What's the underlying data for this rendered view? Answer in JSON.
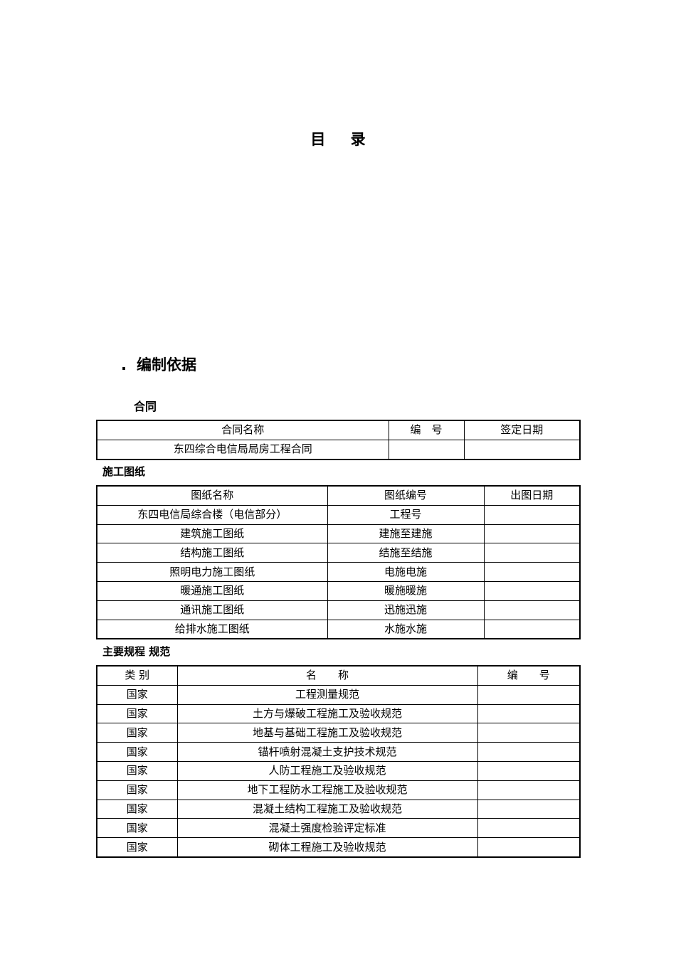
{
  "title": "目 录",
  "section": {
    "number": ".",
    "heading": "编制依据"
  },
  "contract": {
    "heading": "合同",
    "columns": [
      "合同名称",
      "编　号",
      "签定日期"
    ],
    "rows": [
      [
        "东四综合电信局局房工程合同",
        "",
        ""
      ]
    ]
  },
  "drawings": {
    "heading": "施工图纸",
    "columns": [
      "图纸名称",
      "图纸编号",
      "出图日期"
    ],
    "rows": [
      [
        "东四电信局综合楼（电信部分）",
        "工程号",
        ""
      ],
      [
        "建筑施工图纸",
        "建施至建施",
        ""
      ],
      [
        "结构施工图纸",
        "结施至结施",
        ""
      ],
      [
        "照明电力施工图纸",
        "电施电施",
        ""
      ],
      [
        "暖通施工图纸",
        "暖施暖施",
        ""
      ],
      [
        "通讯施工图纸",
        "迅施迅施",
        ""
      ],
      [
        "给排水施工图纸",
        "水施水施",
        ""
      ]
    ]
  },
  "standards": {
    "heading": "主要规程 规范",
    "columns": [
      "类 别",
      "名　　称",
      "编　　号"
    ],
    "rows": [
      [
        "国家",
        "工程测量规范",
        ""
      ],
      [
        "国家",
        "土方与爆破工程施工及验收规范",
        ""
      ],
      [
        "国家",
        "地基与基础工程施工及验收规范",
        ""
      ],
      [
        "国家",
        "锚杆喷射混凝土支护技术规范",
        ""
      ],
      [
        "国家",
        "人防工程施工及验收规范",
        ""
      ],
      [
        "国家",
        "地下工程防水工程施工及验收规范",
        ""
      ],
      [
        "国家",
        "混凝土结构工程施工及验收规范",
        ""
      ],
      [
        "国家",
        "混凝土强度检验评定标准",
        ""
      ],
      [
        "国家",
        "砌体工程施工及验收规范",
        ""
      ]
    ]
  }
}
